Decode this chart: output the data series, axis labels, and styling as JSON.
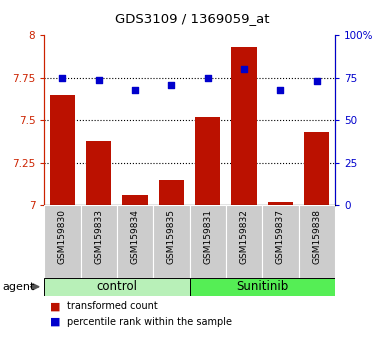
{
  "title": "GDS3109 / 1369059_at",
  "samples": [
    "GSM159830",
    "GSM159833",
    "GSM159834",
    "GSM159835",
    "GSM159831",
    "GSM159832",
    "GSM159837",
    "GSM159838"
  ],
  "red_values": [
    7.65,
    7.38,
    7.06,
    7.15,
    7.52,
    7.93,
    7.02,
    7.43
  ],
  "blue_values": [
    75,
    74,
    68,
    71,
    75,
    80,
    68,
    73
  ],
  "groups": [
    {
      "label": "control",
      "color": "#b8f0b8",
      "dark_color": "#66dd66",
      "start": 0,
      "end": 3
    },
    {
      "label": "Sunitinib",
      "color": "#55ee55",
      "dark_color": "#33cc33",
      "start": 4,
      "end": 7
    }
  ],
  "ylim_left": [
    7.0,
    8.0
  ],
  "ylim_right": [
    0,
    100
  ],
  "yticks_left": [
    7.0,
    7.25,
    7.5,
    7.75,
    8.0
  ],
  "yticks_right": [
    0,
    25,
    50,
    75,
    100
  ],
  "ytick_labels_left": [
    "7",
    "7.25",
    "7.5",
    "7.75",
    "8"
  ],
  "ytick_labels_right": [
    "0",
    "25",
    "50",
    "75",
    "100%"
  ],
  "hlines": [
    7.25,
    7.5,
    7.75
  ],
  "bar_color": "#bb1100",
  "dot_color": "#0000cc",
  "bar_width": 0.7,
  "agent_label": "agent",
  "legend_red": "transformed count",
  "legend_blue": "percentile rank within the sample",
  "left_color": "#cc2200",
  "right_color": "#0000cc",
  "xtick_bg": "#cccccc",
  "plot_bg": "#ffffff",
  "fig_bg": "#ffffff"
}
